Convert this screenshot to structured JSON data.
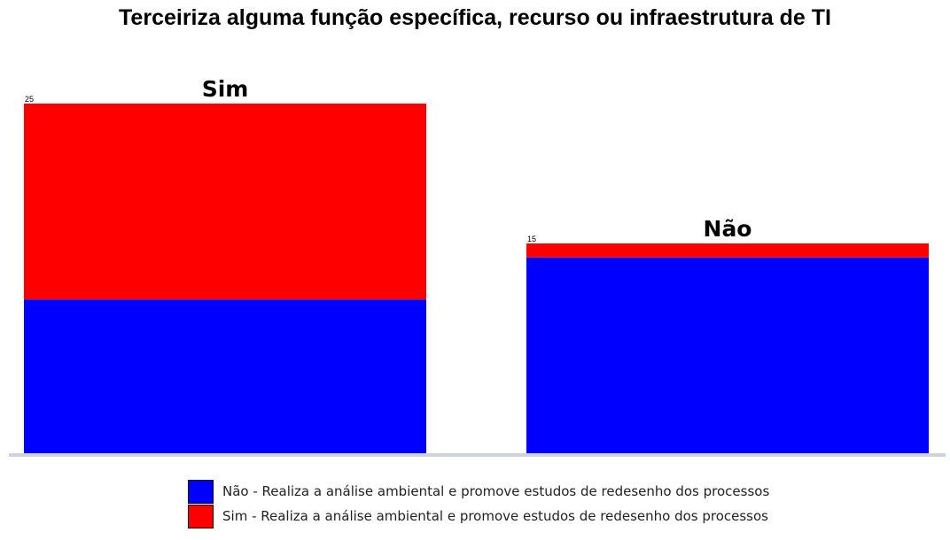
{
  "chart_data": {
    "type": "bar",
    "stacked": true,
    "title": "Terceiriza alguma função específica, recurso ou infraestrutura de TI",
    "categories": [
      "Sim",
      "Não"
    ],
    "totals": [
      "25",
      "15"
    ],
    "series": [
      {
        "name": "Não - Realiza a análise ambiental e promove estudos de redesenho dos processos",
        "color": "#0000ff",
        "values": [
          11,
          14
        ]
      },
      {
        "name": "Sim - Realiza a análise ambiental e promove estudos de redesenho dos processos",
        "color": "#ff0000",
        "values": [
          14,
          1
        ]
      }
    ],
    "xlabel": "",
    "ylabel": "",
    "ylim": [
      0,
      25
    ],
    "grid": false,
    "legend_position": "bottom"
  }
}
